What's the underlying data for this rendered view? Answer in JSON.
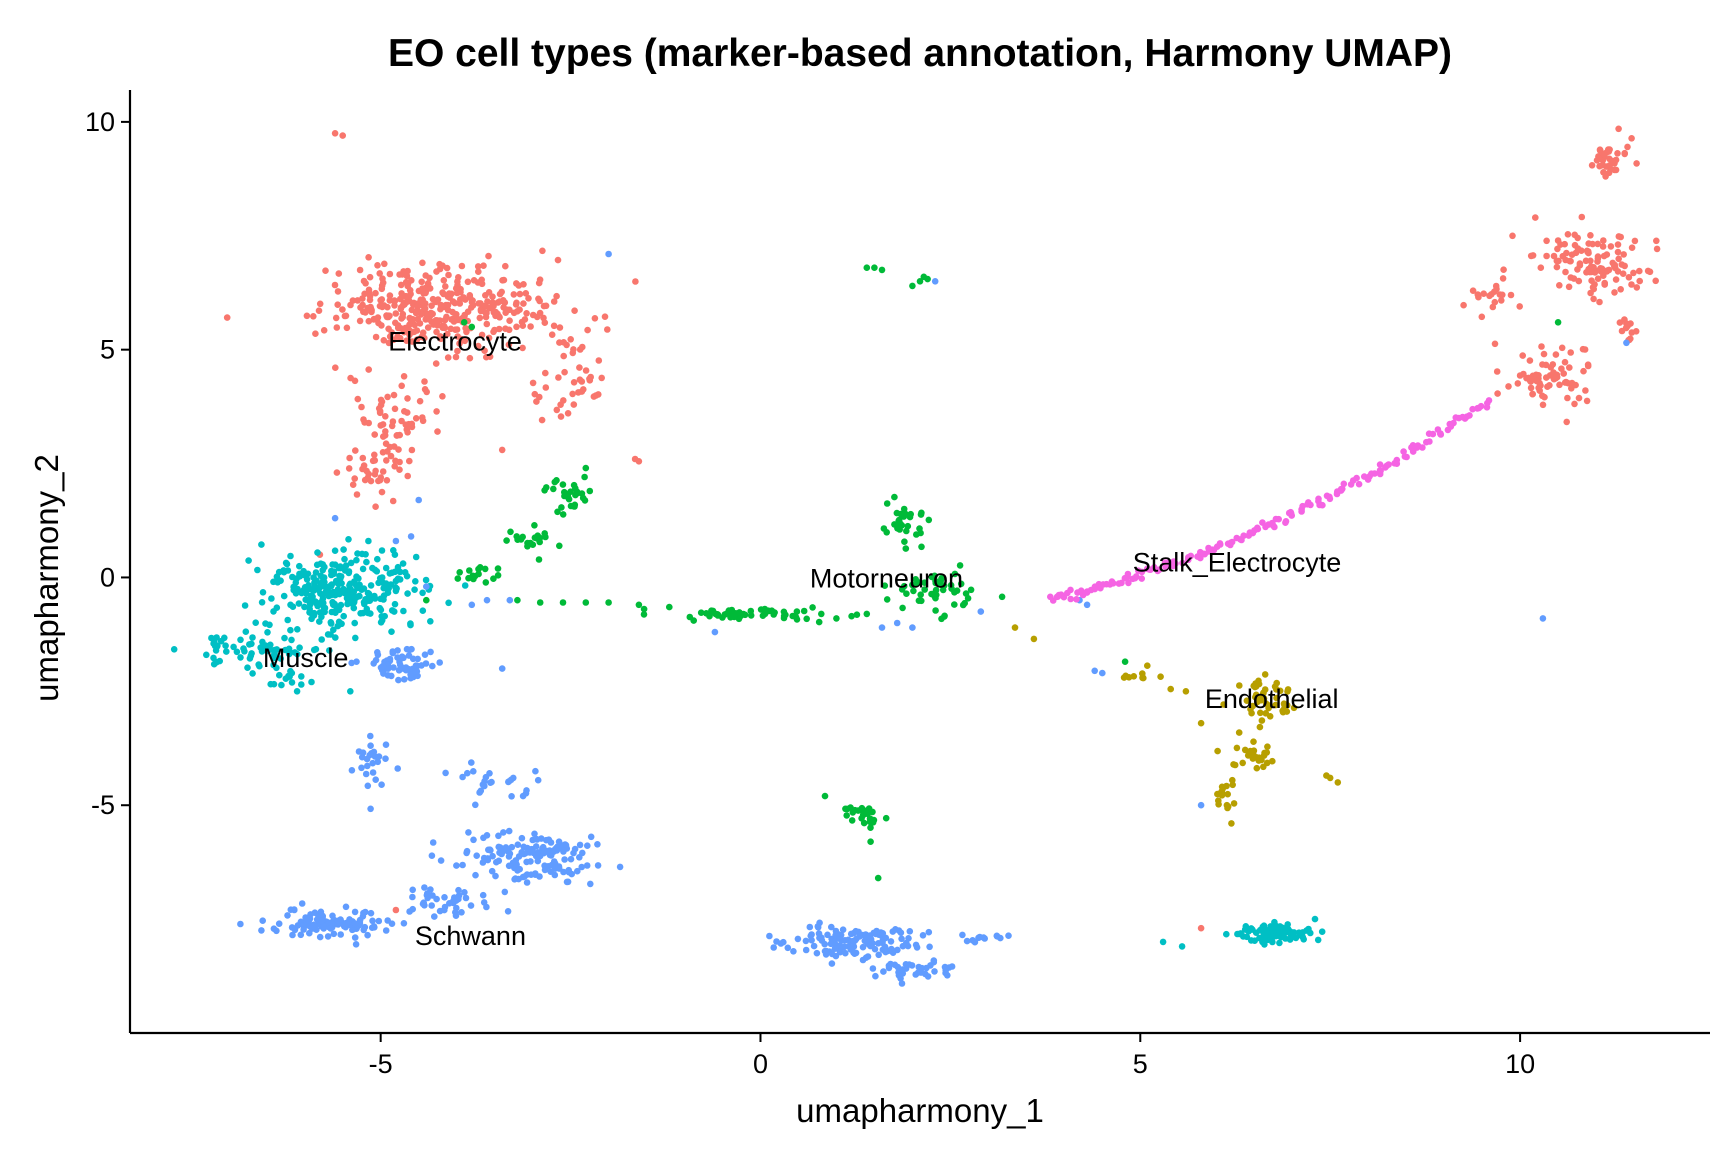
{
  "chart_data": {
    "type": "scatter",
    "title": "EO cell types (marker-based annotation, Harmony UMAP)",
    "xlabel": "umapharmony_1",
    "ylabel": "umapharmony_2",
    "xlim": [
      -8.3,
      12.5
    ],
    "ylim": [
      -10.0,
      10.7
    ],
    "xticks": [
      -5,
      0,
      5,
      10
    ],
    "yticks": [
      -5,
      0,
      5,
      10
    ],
    "xtick_labels": [
      "-5",
      "0",
      "5",
      "10"
    ],
    "ytick_labels": [
      "-5",
      "0",
      "5",
      "10"
    ],
    "grid": false,
    "legend": "none",
    "series": [
      {
        "name": "Electrocyte",
        "color": "#F8766D",
        "label_position": [
          -4.9,
          5.2
        ],
        "clusters": [
          {
            "center": [
              -4.2,
              5.9
            ],
            "spread": [
              1.2,
              0.8
            ],
            "n": 380
          },
          {
            "center": [
              -4.8,
              3.4
            ],
            "spread": [
              0.45,
              1.1
            ],
            "n": 70
          },
          {
            "center": [
              -2.5,
              4.3
            ],
            "spread": [
              0.35,
              0.9
            ],
            "n": 40
          },
          {
            "center": [
              -5.1,
              2.3
            ],
            "spread": [
              0.35,
              0.35
            ],
            "n": 25
          },
          {
            "center": [
              10.4,
              4.4
            ],
            "spread": [
              0.5,
              0.6
            ],
            "n": 70
          },
          {
            "center": [
              11.0,
              6.9
            ],
            "spread": [
              0.6,
              0.6
            ],
            "n": 110
          },
          {
            "center": [
              11.2,
              9.2
            ],
            "spread": [
              0.25,
              0.45
            ],
            "n": 35
          },
          {
            "center": [
              9.6,
              6.3
            ],
            "spread": [
              0.4,
              0.4
            ],
            "n": 20
          },
          {
            "center": [
              11.4,
              5.4
            ],
            "spread": [
              0.1,
              0.25
            ],
            "n": 12
          }
        ],
        "points": [
          [
            -5.6,
            9.75
          ],
          [
            -5.5,
            9.7
          ],
          [
            -3.4,
            2.8
          ],
          [
            -1.65,
            2.6
          ],
          [
            -1.6,
            2.55
          ],
          [
            -5.8,
            0.5
          ],
          [
            5.8,
            -7.7
          ],
          [
            -4.8,
            -7.3
          ],
          [
            10.2,
            7.9
          ],
          [
            9.9,
            7.5
          ]
        ]
      },
      {
        "name": "Muscle",
        "color": "#00BFC4",
        "label_position": [
          -6.55,
          -1.75
        ],
        "clusters": [
          {
            "center": [
              -5.5,
              -0.3
            ],
            "spread": [
              0.8,
              0.75
            ],
            "n": 300
          },
          {
            "center": [
              -6.7,
              -1.6
            ],
            "spread": [
              0.6,
              0.35
            ],
            "n": 60
          },
          {
            "center": [
              -6.2,
              -2.2
            ],
            "spread": [
              0.2,
              0.25
            ],
            "n": 15
          },
          {
            "center": [
              6.8,
              -7.8
            ],
            "spread": [
              0.45,
              0.18
            ],
            "n": 90
          }
        ],
        "points": [
          [
            -7.2,
            -1.45
          ],
          [
            -7.15,
            -1.5
          ],
          [
            -7.1,
            -1.4
          ],
          [
            -6.1,
            -2.5
          ],
          [
            -5.4,
            -2.5
          ],
          [
            5.3,
            -8.0
          ],
          [
            5.55,
            -8.1
          ],
          [
            7.3,
            -7.5
          ]
        ]
      },
      {
        "name": "Schwann",
        "color": "#619CFF",
        "label_position": [
          -4.55,
          -7.85
        ],
        "clusters": [
          {
            "center": [
              -5.7,
              -7.6
            ],
            "spread": [
              0.7,
              0.25
            ],
            "n": 110
          },
          {
            "center": [
              -3.0,
              -6.1
            ],
            "spread": [
              0.8,
              0.4
            ],
            "n": 140
          },
          {
            "center": [
              -4.1,
              -7.1
            ],
            "spread": [
              0.6,
              0.3
            ],
            "n": 40
          },
          {
            "center": [
              -4.7,
              -1.9
            ],
            "spread": [
              0.45,
              0.35
            ],
            "n": 60
          },
          {
            "center": [
              -5.1,
              -4.0
            ],
            "spread": [
              0.2,
              0.5
            ],
            "n": 25
          },
          {
            "center": [
              -3.6,
              -4.5
            ],
            "spread": [
              0.45,
              0.3
            ],
            "n": 25
          },
          {
            "center": [
              1.2,
              -8.0
            ],
            "spread": [
              0.8,
              0.3
            ],
            "n": 130
          },
          {
            "center": [
              2.0,
              -8.6
            ],
            "spread": [
              0.5,
              0.2
            ],
            "n": 40
          },
          {
            "center": [
              2.9,
              -7.9
            ],
            "spread": [
              0.25,
              0.08
            ],
            "n": 12
          }
        ],
        "points": [
          [
            -4.4,
            -0.2
          ],
          [
            -3.8,
            -0.6
          ],
          [
            -3.6,
            -0.5
          ],
          [
            -3.3,
            -0.5
          ],
          [
            -4.6,
            0.9
          ],
          [
            -4.8,
            0.8
          ],
          [
            -5.6,
            1.3
          ],
          [
            -4.5,
            1.7
          ],
          [
            -0.6,
            -1.2
          ],
          [
            1.6,
            -1.1
          ],
          [
            1.8,
            -1.0
          ],
          [
            2.0,
            -1.1
          ],
          [
            2.9,
            -0.75
          ],
          [
            2.3,
            6.5
          ],
          [
            4.2,
            -0.5
          ],
          [
            4.3,
            -0.6
          ],
          [
            4.5,
            -2.1
          ],
          [
            4.4,
            -2.05
          ],
          [
            5.8,
            -5.0
          ],
          [
            10.3,
            -0.9
          ],
          [
            11.4,
            5.15
          ],
          [
            -3.4,
            -2.0
          ],
          [
            -2.0,
            7.1
          ]
        ]
      },
      {
        "name": "Motorneuron",
        "color": "#00BA38",
        "label_position": [
          0.65,
          0.0
        ],
        "clusters": [
          {
            "center": [
              -0.2,
              -0.8
            ],
            "spread": [
              0.75,
              0.12
            ],
            "n": 60
          },
          {
            "center": [
              2.3,
              -0.3
            ],
            "spread": [
              0.55,
              0.45
            ],
            "n": 50
          },
          {
            "center": [
              1.9,
              1.2
            ],
            "spread": [
              0.3,
              0.4
            ],
            "n": 30
          },
          {
            "center": [
              -2.5,
              1.8
            ],
            "spread": [
              0.22,
              0.35
            ],
            "n": 30
          },
          {
            "center": [
              -3.0,
              0.8
            ],
            "spread": [
              0.3,
              0.3
            ],
            "n": 20
          },
          {
            "center": [
              -3.7,
              0.1
            ],
            "spread": [
              0.35,
              0.15
            ],
            "n": 15
          },
          {
            "center": [
              1.35,
              -5.25
            ],
            "spread": [
              0.18,
              0.2
            ],
            "n": 25
          }
        ],
        "points": [
          [
            -2.0,
            -0.55
          ],
          [
            -2.3,
            -0.55
          ],
          [
            -2.6,
            -0.55
          ],
          [
            -2.9,
            -0.55
          ],
          [
            -3.2,
            -0.5
          ],
          [
            -1.6,
            -0.6
          ],
          [
            -1.2,
            -0.65
          ],
          [
            0.8,
            -0.8
          ],
          [
            1.0,
            -0.9
          ],
          [
            1.2,
            -0.85
          ],
          [
            1.4,
            -0.8
          ],
          [
            1.4,
            6.8
          ],
          [
            1.5,
            6.8
          ],
          [
            1.6,
            6.75
          ],
          [
            2.2,
            6.55
          ],
          [
            2.1,
            6.5
          ],
          [
            2.15,
            6.6
          ],
          [
            2.0,
            6.4
          ],
          [
            0.85,
            -4.8
          ],
          [
            1.45,
            -5.8
          ],
          [
            1.55,
            -6.6
          ],
          [
            -3.9,
            5.6
          ],
          [
            -3.8,
            5.5
          ],
          [
            -4.4,
            -0.5
          ],
          [
            4.8,
            -1.85
          ],
          [
            10.5,
            5.6
          ],
          [
            -2.3,
            2.4
          ]
        ]
      },
      {
        "name": "Endothelial",
        "color": "#B79F00",
        "label_position": [
          5.85,
          -2.65
        ],
        "clusters": [
          {
            "center": [
              6.6,
              -2.7
            ],
            "spread": [
              0.35,
              0.4
            ],
            "n": 45
          },
          {
            "center": [
              6.5,
              -3.9
            ],
            "spread": [
              0.3,
              0.35
            ],
            "n": 30
          },
          {
            "center": [
              6.1,
              -4.8
            ],
            "spread": [
              0.15,
              0.4
            ],
            "n": 15
          },
          {
            "center": [
              5.0,
              -2.15
            ],
            "spread": [
              0.2,
              0.12
            ],
            "n": 10
          }
        ],
        "points": [
          [
            3.35,
            -1.1
          ],
          [
            3.6,
            -1.35
          ],
          [
            5.4,
            -2.45
          ],
          [
            5.6,
            -2.5
          ],
          [
            7.5,
            -4.4
          ],
          [
            7.6,
            -4.5
          ],
          [
            7.45,
            -4.35
          ],
          [
            6.2,
            -5.4
          ],
          [
            5.8,
            -3.2
          ]
        ]
      },
      {
        "name": "Stalk_Electrocyte",
        "color": "#F564E3",
        "label_position": [
          4.9,
          0.35
        ],
        "curve": {
          "x_from": 3.8,
          "x_to": 9.6,
          "n": 170,
          "description": "arc from (3.8,-0.5) to (9.6,3.9)"
        },
        "points": []
      }
    ]
  }
}
